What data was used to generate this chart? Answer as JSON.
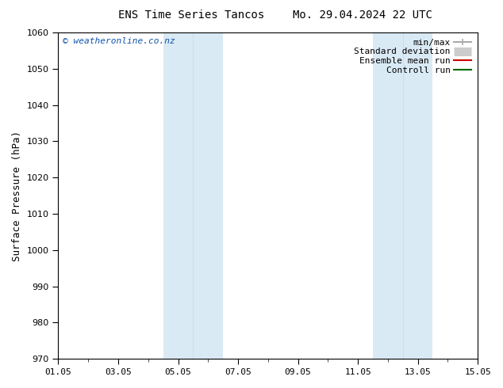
{
  "title_left": "ENS Time Series Tancos",
  "title_right": "Mo. 29.04.2024 22 UTC",
  "ylabel": "Surface Pressure (hPa)",
  "ylim": [
    970,
    1060
  ],
  "yticks": [
    970,
    980,
    990,
    1000,
    1010,
    1020,
    1030,
    1040,
    1050,
    1060
  ],
  "x_start_num": 0,
  "x_end_num": 14,
  "xtick_labels": [
    "01.05",
    "03.05",
    "05.05",
    "07.05",
    "09.05",
    "11.05",
    "13.05",
    "15.05"
  ],
  "xtick_positions": [
    0,
    2,
    4,
    6,
    8,
    10,
    12,
    14
  ],
  "shade_bands": [
    {
      "x_start": 3.5,
      "x_end": 5.5,
      "color": "#daeaf5"
    },
    {
      "x_start": 10.5,
      "x_end": 12.5,
      "color": "#daeaf5"
    }
  ],
  "shade_dividers": [
    4.5,
    11.5
  ],
  "watermark": "© weatheronline.co.nz",
  "legend_entries": [
    {
      "label": "min/max",
      "color": "#aaaaaa",
      "lw": 1.5,
      "linestyle": "-",
      "type": "errbar"
    },
    {
      "label": "Standard deviation",
      "color": "#cccccc",
      "lw": 8,
      "linestyle": "-",
      "type": "rect"
    },
    {
      "label": "Ensemble mean run",
      "color": "#cc0000",
      "lw": 1.5,
      "linestyle": "-",
      "type": "line"
    },
    {
      "label": "Controll run",
      "color": "#006600",
      "lw": 1.5,
      "linestyle": "-",
      "type": "line"
    }
  ],
  "background_color": "#ffffff",
  "plot_bg_color": "#ffffff",
  "border_color": "#000000",
  "text_color": "#333333",
  "font_size_title": 10,
  "font_size_tick": 8,
  "font_size_legend": 8,
  "font_size_ylabel": 9,
  "font_size_watermark": 8
}
